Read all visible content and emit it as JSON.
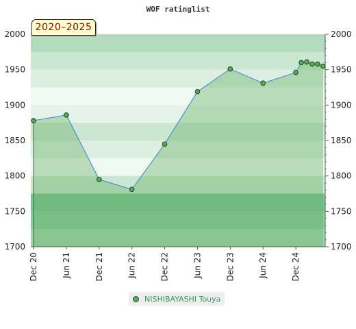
{
  "chart_data": {
    "type": "area",
    "title": "WOF ratinglist",
    "badge": "2020–2025",
    "ylim": [
      1700,
      2000
    ],
    "yticks": [
      "1700",
      "1750",
      "1800",
      "1850",
      "1900",
      "1950",
      "2000"
    ],
    "xticks": [
      "Dec 20",
      "Jun 21",
      "Dec 21",
      "Jun 22",
      "Dec 22",
      "Jun 23",
      "Dec 23",
      "Jun 24",
      "Dec 24"
    ],
    "xtick_dates": [
      "2020-12",
      "2021-06",
      "2021-12",
      "2022-06",
      "2022-12",
      "2023-06",
      "2023-12",
      "2024-06",
      "2024-12"
    ],
    "xrange": [
      "2020-12",
      "2025-05"
    ],
    "series": [
      {
        "name": "NISHIBAYASHI Touya",
        "color": "#55aa55",
        "line_color": "#4a90d9",
        "points": [
          {
            "x": "2020-12",
            "y": 1878
          },
          {
            "x": "2021-06",
            "y": 1886
          },
          {
            "x": "2021-12",
            "y": 1795
          },
          {
            "x": "2022-06",
            "y": 1781
          },
          {
            "x": "2022-12",
            "y": 1845
          },
          {
            "x": "2023-06",
            "y": 1919
          },
          {
            "x": "2023-12",
            "y": 1951
          },
          {
            "x": "2024-06",
            "y": 1931
          },
          {
            "x": "2024-12",
            "y": 1946
          },
          {
            "x": "2025-01",
            "y": 1960
          },
          {
            "x": "2025-02",
            "y": 1961
          },
          {
            "x": "2025-03",
            "y": 1958
          },
          {
            "x": "2025-04",
            "y": 1958
          },
          {
            "x": "2025-05",
            "y": 1955
          }
        ]
      }
    ],
    "grid": true,
    "legend_position": "bottom-center"
  }
}
